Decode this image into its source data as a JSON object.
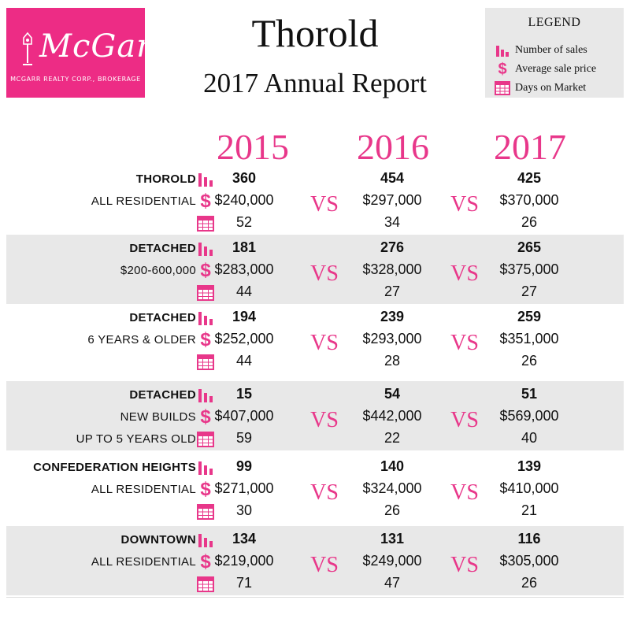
{
  "logo": {
    "script": "McGarr",
    "tagline": "MCGARR REALTY CORP., BROKERAGE"
  },
  "header": {
    "title": "Thorold",
    "subtitle": "2017 Annual Report"
  },
  "legend": {
    "heading": "LEGEND",
    "items": [
      {
        "icon": "bar-chart-icon",
        "label": "Number of sales"
      },
      {
        "icon": "dollar-icon",
        "label": "Average sale price"
      },
      {
        "icon": "calendar-icon",
        "label": "Days on Market"
      }
    ]
  },
  "years": [
    "2015",
    "2016",
    "2017"
  ],
  "vs_label": "VS",
  "accent_color": "#E8378A",
  "sections": [
    {
      "labels": [
        "THOROLD",
        "ALL RESIDENTIAL",
        ""
      ],
      "sales": [
        "360",
        "454",
        "425"
      ],
      "prices": [
        "$240,000",
        "$297,000",
        "$370,000"
      ],
      "days": [
        "52",
        "34",
        "26"
      ],
      "shaded": false
    },
    {
      "labels": [
        "DETACHED",
        "$200-600,000",
        ""
      ],
      "sales": [
        "181",
        "276",
        "265"
      ],
      "prices": [
        "$283,000",
        "$328,000",
        "$375,000"
      ],
      "days": [
        "44",
        "27",
        "27"
      ],
      "shaded": true
    },
    {
      "labels": [
        "DETACHED",
        "6 YEARS & OLDER",
        ""
      ],
      "sales": [
        "194",
        "239",
        "259"
      ],
      "prices": [
        "$252,000",
        "$293,000",
        "$351,000"
      ],
      "days": [
        "44",
        "28",
        "26"
      ],
      "shaded": false
    },
    {
      "labels": [
        "DETACHED",
        "NEW BUILDS",
        "UP TO 5 YEARS OLD"
      ],
      "sales": [
        "15",
        "54",
        "51"
      ],
      "prices": [
        "$407,000",
        "$442,000",
        "$569,000"
      ],
      "days": [
        "59",
        "22",
        "40"
      ],
      "shaded": true
    },
    {
      "labels": [
        "CONFEDERATION HEIGHTS",
        "ALL RESIDENTIAL",
        ""
      ],
      "sales": [
        "99",
        "140",
        "139"
      ],
      "prices": [
        "$271,000",
        "$324,000",
        "$410,000"
      ],
      "days": [
        "30",
        "26",
        "21"
      ],
      "shaded": false
    },
    {
      "labels": [
        "DOWNTOWN",
        "ALL RESIDENTIAL",
        ""
      ],
      "sales": [
        "134",
        "131",
        "116"
      ],
      "prices": [
        "$219,000",
        "$249,000",
        "$305,000"
      ],
      "days": [
        "71",
        "47",
        "26"
      ],
      "shaded": true
    }
  ]
}
